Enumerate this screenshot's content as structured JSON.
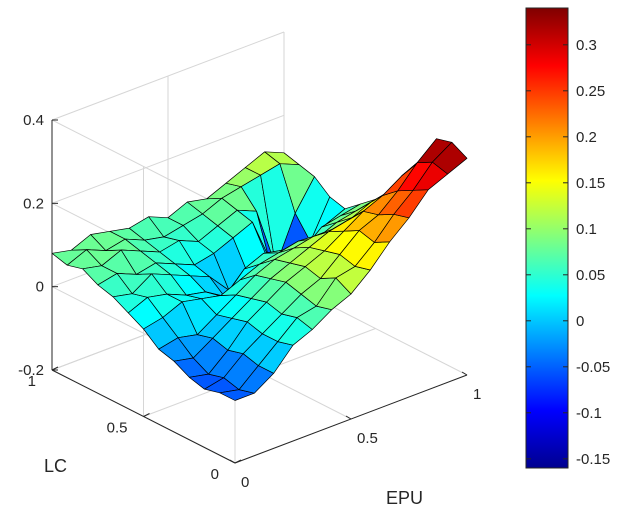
{
  "chart_data": {
    "type": "surface3d",
    "title": "",
    "xlabel": "EPU",
    "ylabel": "LC",
    "zlabel": "",
    "xlim": [
      0,
      1
    ],
    "ylim": [
      0,
      1
    ],
    "zlim": [
      -0.2,
      0.4
    ],
    "x_ticks": [
      "0",
      "0.5",
      "1"
    ],
    "y_ticks": [
      "0",
      "0.5",
      "1"
    ],
    "z_ticks": [
      "-0.2",
      "0",
      "0.2",
      "0.4"
    ],
    "grid": true,
    "colormap": "jet",
    "colorbar": {
      "range": [
        -0.16,
        0.34
      ],
      "ticks": [
        "-0.15",
        "-0.1",
        "-0.05",
        "0",
        "0.05",
        "0.1",
        "0.15",
        "0.2",
        "0.25",
        "0.3"
      ]
    },
    "x": [
      0,
      0.0833,
      0.1667,
      0.25,
      0.3333,
      0.4167,
      0.5,
      0.5833,
      0.6667,
      0.75,
      0.8333,
      0.9167,
      1
    ],
    "y": [
      0,
      0.0833,
      0.1667,
      0.25,
      0.3333,
      0.4167,
      0.5,
      0.5833,
      0.6667,
      0.75,
      0.8333,
      0.9167,
      1
    ],
    "z": [
      [
        -0.05,
        -0.05,
        -0.02,
        0.03,
        0.05,
        0.08,
        0.1,
        0.14,
        0.19,
        0.23,
        0.28,
        0.3,
        0.32
      ],
      [
        -0.05,
        -0.06,
        -0.02,
        0.02,
        0.06,
        0.07,
        0.12,
        0.13,
        0.17,
        0.22,
        0.26,
        0.31,
        0.34
      ],
      [
        -0.06,
        -0.05,
        -0.01,
        0.02,
        0.05,
        0.08,
        0.1,
        0.14,
        0.18,
        0.2,
        0.24,
        0.29,
        0.33
      ],
      [
        -0.05,
        -0.06,
        -0.02,
        0.03,
        0.06,
        0.09,
        0.11,
        0.13,
        0.16,
        0.19,
        0.21,
        0.24,
        0.26
      ],
      [
        -0.03,
        -0.04,
        -0.01,
        0.02,
        0.05,
        0.08,
        0.1,
        0.12,
        0.14,
        0.15,
        0.16,
        0.18,
        0.19
      ],
      [
        -0.02,
        -0.01,
        -0.02,
        0.01,
        0.04,
        0.07,
        0.09,
        0.1,
        0.11,
        0.11,
        0.12,
        0.14,
        0.15
      ],
      [
        0.01,
        0.02,
        0.04,
        0.03,
        0.02,
        0.04,
        0.06,
        0.07,
        0.08,
        0.07,
        0.09,
        0.1,
        0.11
      ],
      [
        0.03,
        0.05,
        0.04,
        0.02,
        0.01,
        -0.02,
        0.03,
        0.05,
        0.04,
        0.02,
        0.06,
        0.07,
        0.08
      ],
      [
        0.05,
        0.04,
        0.07,
        0.05,
        0.03,
        0.01,
        -0.04,
        -0.02,
        0.01,
        -0.05,
        -0.08,
        0.03,
        0.05
      ],
      [
        0.06,
        0.07,
        0.05,
        0.06,
        0.04,
        0.02,
        0.03,
        0.05,
        0.07,
        -0.06,
        -0.12,
        -0.03,
        0.06
      ],
      [
        0.08,
        0.07,
        0.09,
        0.07,
        0.05,
        0.06,
        0.04,
        0.06,
        0.08,
        0.06,
        -0.09,
        0.02,
        0.09
      ],
      [
        0.07,
        0.09,
        0.07,
        0.08,
        0.06,
        0.05,
        0.06,
        0.07,
        0.09,
        0.1,
        0.11,
        0.12,
        0.1
      ],
      [
        0.08,
        0.07,
        0.09,
        0.08,
        0.07,
        0.08,
        0.06,
        0.08,
        0.07,
        0.09,
        0.11,
        0.13,
        0.11
      ]
    ]
  }
}
